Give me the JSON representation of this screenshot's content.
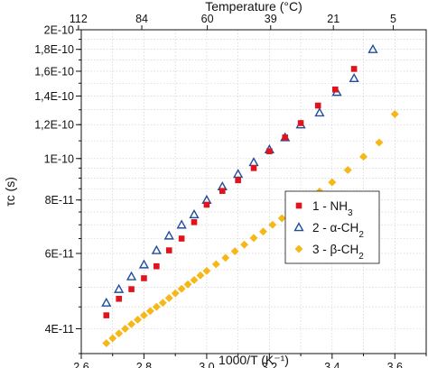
{
  "chart_data": {
    "type": "scatter",
    "xlabel": "1000/T (K⁻¹)",
    "top_xlabel": "Temperature (°C)",
    "ylabel": "τc (s)",
    "xlim": [
      2.6,
      3.7
    ],
    "ylim": [
      3.5e-11,
      2e-10
    ],
    "y_scale": "log",
    "grid": true,
    "legend_position": "center-right",
    "x_ticks": [
      2.6,
      2.8,
      3.0,
      3.2,
      3.4,
      3.6
    ],
    "x_tick_labels": [
      "2,6",
      "2,8",
      "3,0",
      "3,2",
      "3,4",
      "3,6"
    ],
    "y_ticks": [
      4e-11,
      6e-11,
      8e-11,
      1e-10,
      1.2e-10,
      1.4e-10,
      1.6e-10,
      1.8e-10,
      2e-10
    ],
    "y_tick_labels": [
      "4E-11",
      "6E-11",
      "8E-11",
      "1E-10",
      "1,2E-10",
      "1,4E-10",
      "1,6E-10",
      "1,8E-10",
      "2E-10"
    ],
    "top_ticks": [
      {
        "label": "112",
        "x": 2.591
      },
      {
        "label": "84",
        "x": 2.793
      },
      {
        "label": "60",
        "x": 3.002
      },
      {
        "label": "39",
        "x": 3.204
      },
      {
        "label": "21",
        "x": 3.404
      },
      {
        "label": "5",
        "x": 3.595
      }
    ],
    "series": [
      {
        "name": "1 - NH3",
        "legend_main": "1 - NH",
        "legend_sub": "3",
        "legend_post": "",
        "marker": "square",
        "color": "#e0141e",
        "x": [
          2.68,
          2.72,
          2.76,
          2.8,
          2.84,
          2.88,
          2.92,
          2.96,
          3.0,
          3.05,
          3.1,
          3.15,
          3.2,
          3.25,
          3.3,
          3.355,
          3.41,
          3.47
        ],
        "y": [
          4.3e-11,
          4.7e-11,
          4.95e-11,
          5.25e-11,
          5.6e-11,
          6.1e-11,
          6.5e-11,
          7.1e-11,
          7.8e-11,
          8.4e-11,
          8.9e-11,
          9.5e-11,
          1.04e-10,
          1.12e-10,
          1.21e-10,
          1.33e-10,
          1.45e-10,
          1.62e-10
        ]
      },
      {
        "name": "2 - α-CH2",
        "legend_main": "2 - α-CH",
        "legend_sub": "2",
        "legend_post": "",
        "marker": "triangle",
        "color": "#1f4e9c",
        "x": [
          2.68,
          2.72,
          2.76,
          2.8,
          2.84,
          2.88,
          2.92,
          2.96,
          3.0,
          3.05,
          3.1,
          3.15,
          3.2,
          3.25,
          3.3,
          3.36,
          3.415,
          3.47,
          3.53
        ],
        "y": [
          4.6e-11,
          4.95e-11,
          5.3e-11,
          5.65e-11,
          6.1e-11,
          6.6e-11,
          7e-11,
          7.4e-11,
          8e-11,
          8.6e-11,
          9.2e-11,
          9.8e-11,
          1.05e-10,
          1.12e-10,
          1.2e-10,
          1.28e-10,
          1.43e-10,
          1.54e-10,
          1.8e-10
        ]
      },
      {
        "name": "3 - β-CH2",
        "legend_main": "3 - β-CH",
        "legend_sub": "2",
        "legend_post": "",
        "marker": "diamond",
        "color": "#f6b818",
        "x": [
          2.68,
          2.7,
          2.72,
          2.74,
          2.76,
          2.78,
          2.8,
          2.82,
          2.84,
          2.86,
          2.88,
          2.9,
          2.92,
          2.94,
          2.96,
          2.98,
          3.0,
          3.03,
          3.06,
          3.09,
          3.12,
          3.15,
          3.18,
          3.21,
          3.24,
          3.27,
          3.3,
          3.33,
          3.36,
          3.4,
          3.45,
          3.5,
          3.55,
          3.6
        ],
        "y": [
          3.7e-11,
          3.8e-11,
          3.9e-11,
          4e-11,
          4.1e-11,
          4.2e-11,
          4.3e-11,
          4.4e-11,
          4.5e-11,
          4.6e-11,
          4.72e-11,
          4.84e-11,
          4.96e-11,
          5.08e-11,
          5.2e-11,
          5.33e-11,
          5.46e-11,
          5.66e-11,
          5.86e-11,
          6.07e-11,
          6.29e-11,
          6.52e-11,
          6.75e-11,
          7e-11,
          7.25e-11,
          7.52e-11,
          7.8e-11,
          8.08e-11,
          8.37e-11,
          8.8e-11,
          9.4e-11,
          1.01e-10,
          1.09e-10,
          1.27e-10
        ]
      }
    ]
  }
}
